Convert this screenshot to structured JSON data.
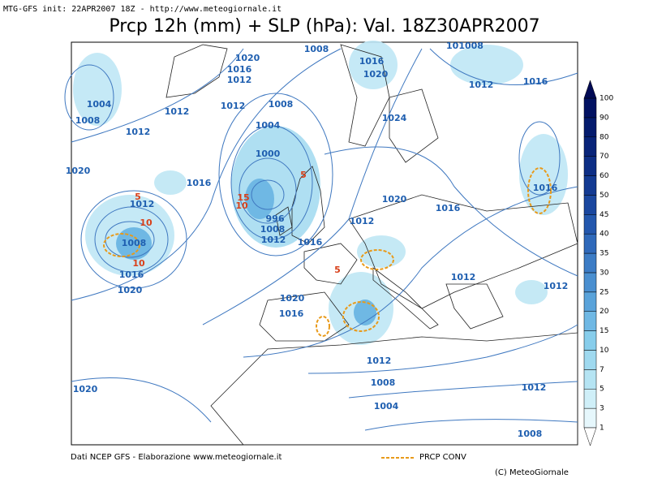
{
  "header": {
    "subtitle": "MTG-GFS init: 22APR2007 18Z - http://www.meteogiornale.it",
    "title": "Prcp 12h (mm) + SLP (hPa): Val. 18Z30APR2007"
  },
  "map": {
    "isobar_labels": [
      "101008",
      "1008",
      "1020",
      "1016",
      "1012",
      "1004",
      "1012",
      "1012",
      "1008",
      "1008",
      "1012",
      "1004",
      "1000",
      "1020",
      "1016",
      "1012",
      "1008",
      "1016",
      "1020",
      "996",
      "1008",
      "1012",
      "1016",
      "1016",
      "1020",
      "1024",
      "1020",
      "1012",
      "1016",
      "1012",
      "1016",
      "1016",
      "1012",
      "1012",
      "1020",
      "1016",
      "1012",
      "1008",
      "1004",
      "1020",
      "1012",
      "1008"
    ],
    "precip_labels": [
      "5",
      "10",
      "10",
      "15",
      "10",
      "5",
      "5"
    ]
  },
  "colorbar": {
    "levels": [
      1,
      3,
      5,
      7,
      10,
      15,
      20,
      25,
      30,
      35,
      40,
      45,
      50,
      60,
      70,
      80,
      90,
      100
    ],
    "colors": [
      "#e6f7fc",
      "#cfeff8",
      "#b5e4f3",
      "#9fd9ef",
      "#87cdeb",
      "#6fb8e4",
      "#5aa3da",
      "#4a8fd0",
      "#3c7cc5",
      "#2f69ba",
      "#2357ad",
      "#1a479f",
      "#133a92",
      "#0d2e85",
      "#082479",
      "#041b6d",
      "#021262",
      "#010a55"
    ]
  },
  "footer": {
    "source": "Dati NCEP GFS - Elaborazione www.meteogiornale.it",
    "legend": "PRCP CONV",
    "credit": "(C) MeteoGiornale"
  }
}
